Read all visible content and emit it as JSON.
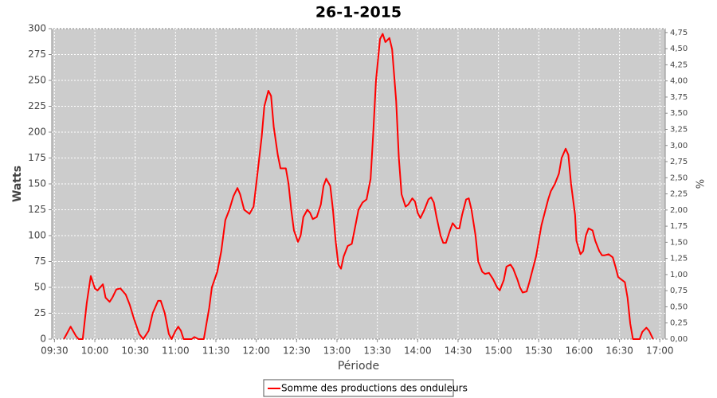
{
  "chart_data": {
    "type": "line",
    "title": "26-1-2015",
    "x_label": "Période",
    "y_label": "Watts",
    "y2_label": "%",
    "x": [
      "09:37",
      "09:42",
      "09:46",
      "09:48",
      "09:51",
      "09:54",
      "09:57",
      "10:00",
      "10:02",
      "10:06",
      "10:08",
      "10:11",
      "10:13",
      "10:16",
      "10:19",
      "10:23",
      "10:26",
      "10:29",
      "10:33",
      "10:36",
      "10:40",
      "10:43",
      "10:47",
      "10:49",
      "10:52",
      "10:55",
      "10:57",
      "11:00",
      "11:02",
      "11:04",
      "11:06",
      "11:12",
      "11:14",
      "11:17",
      "11:21",
      "11:25",
      "11:27",
      "11:31",
      "11:34",
      "11:37",
      "11:40",
      "11:43",
      "11:46",
      "11:48",
      "11:51",
      "11:55",
      "11:58",
      "12:00",
      "12:04",
      "12:06",
      "12:09",
      "12:11",
      "12:13",
      "12:16",
      "12:18",
      "12:22",
      "12:24",
      "12:26",
      "12:28",
      "12:31",
      "12:33",
      "12:35",
      "12:38",
      "12:40",
      "12:42",
      "12:45",
      "12:48",
      "12:50",
      "12:52",
      "12:55",
      "12:57",
      "12:59",
      "13:01",
      "13:03",
      "13:05",
      "13:08",
      "13:11",
      "13:13",
      "13:16",
      "13:19",
      "13:22",
      "13:25",
      "13:27",
      "13:29",
      "13:32",
      "13:34",
      "13:36",
      "13:39",
      "13:41",
      "13:44",
      "13:46",
      "13:48",
      "13:51",
      "13:53",
      "13:56",
      "13:58",
      "14:00",
      "14:02",
      "14:05",
      "14:08",
      "14:10",
      "14:12",
      "14:14",
      "14:17",
      "14:19",
      "14:21",
      "14:24",
      "14:26",
      "14:29",
      "14:31",
      "14:33",
      "14:36",
      "14:38",
      "14:40",
      "14:43",
      "14:45",
      "14:48",
      "14:50",
      "14:53",
      "14:56",
      "14:59",
      "15:01",
      "15:04",
      "15:06",
      "15:09",
      "15:11",
      "15:14",
      "15:16",
      "15:18",
      "15:21",
      "15:23",
      "15:25",
      "15:28",
      "15:30",
      "15:32",
      "15:35",
      "15:37",
      "15:39",
      "15:42",
      "15:45",
      "15:47",
      "15:50",
      "15:52",
      "15:54",
      "15:57",
      "15:58",
      "16:01",
      "16:03",
      "16:05",
      "16:07",
      "16:10",
      "16:12",
      "16:15",
      "16:17",
      "16:19",
      "16:22",
      "16:25",
      "16:27",
      "16:29",
      "16:32",
      "16:34",
      "16:36",
      "16:38",
      "16:40",
      "16:45",
      "16:47",
      "16:50",
      "16:52",
      "16:55"
    ],
    "series": [
      {
        "name": "Somme des productions des onduleurs",
        "color": "#ff0000",
        "values": [
          0,
          12,
          3,
          0,
          0,
          35,
          61,
          49,
          47,
          53,
          40,
          36,
          40,
          48,
          49,
          43,
          33,
          20,
          5,
          0,
          8,
          25,
          37,
          37,
          25,
          5,
          0,
          8,
          12,
          8,
          0,
          0,
          2,
          0,
          0,
          30,
          50,
          65,
          85,
          115,
          125,
          138,
          146,
          140,
          125,
          121,
          128,
          150,
          195,
          225,
          240,
          235,
          205,
          178,
          165,
          165,
          150,
          125,
          105,
          94,
          100,
          118,
          125,
          122,
          116,
          118,
          130,
          148,
          155,
          148,
          125,
          95,
          72,
          68,
          80,
          90,
          92,
          105,
          125,
          132,
          135,
          155,
          200,
          250,
          290,
          295,
          287,
          291,
          280,
          230,
          175,
          140,
          128,
          130,
          136,
          133,
          122,
          117,
          125,
          135,
          137,
          132,
          118,
          100,
          93,
          93,
          105,
          112,
          107,
          107,
          120,
          135,
          136,
          125,
          100,
          75,
          65,
          63,
          64,
          58,
          50,
          47,
          57,
          70,
          72,
          68,
          58,
          50,
          45,
          46,
          55,
          65,
          80,
          95,
          110,
          125,
          135,
          143,
          150,
          160,
          175,
          184,
          178,
          150,
          120,
          95,
          82,
          85,
          100,
          107,
          105,
          95,
          85,
          81,
          81,
          82,
          79,
          70,
          60,
          57,
          55,
          40,
          15,
          0,
          0,
          7,
          11,
          8,
          0
        ]
      }
    ],
    "xlim": [
      "09:28",
      "17:04"
    ],
    "xticks": [
      "09:30",
      "10:00",
      "10:30",
      "11:00",
      "11:30",
      "12:00",
      "12:30",
      "13:00",
      "13:30",
      "14:00",
      "14:30",
      "15:00",
      "15:30",
      "16:00",
      "16:30",
      "17:00"
    ],
    "ylim": [
      0,
      300
    ],
    "yticks": [
      0,
      25,
      50,
      75,
      100,
      125,
      150,
      175,
      200,
      225,
      250,
      275,
      300
    ],
    "y2lim": [
      0,
      4.81
    ],
    "y2ticks": [
      {
        "value": 0,
        "label": "0,00"
      },
      {
        "value": 0.25,
        "label": "0,25"
      },
      {
        "value": 0.5,
        "label": "0,50"
      },
      {
        "value": 0.75,
        "label": "0,75"
      },
      {
        "value": 1,
        "label": "1,00"
      },
      {
        "value": 1.25,
        "label": "1,25"
      },
      {
        "value": 1.5,
        "label": "1,50"
      },
      {
        "value": 1.75,
        "label": "1,75"
      },
      {
        "value": 2,
        "label": "2,00"
      },
      {
        "value": 2.25,
        "label": "2,25"
      },
      {
        "value": 2.5,
        "label": "2,50"
      },
      {
        "value": 2.75,
        "label": "2,75"
      },
      {
        "value": 3,
        "label": "3,00"
      },
      {
        "value": 3.25,
        "label": "3,25"
      },
      {
        "value": 3.5,
        "label": "3,50"
      },
      {
        "value": 3.75,
        "label": "3,75"
      },
      {
        "value": 4,
        "label": "4,00"
      },
      {
        "value": 4.25,
        "label": "4,25"
      },
      {
        "value": 4.5,
        "label": "4,50"
      },
      {
        "value": 4.75,
        "label": "4,75"
      }
    ],
    "grid": true,
    "legend": "bottom"
  }
}
